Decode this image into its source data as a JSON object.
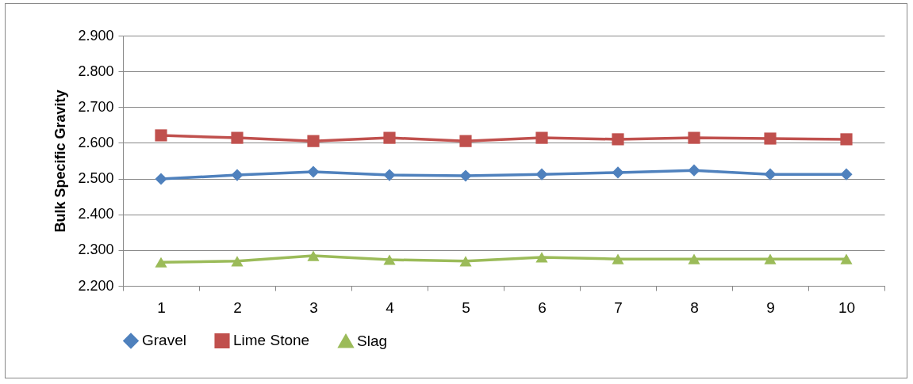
{
  "chart_data": {
    "type": "line",
    "ylabel": "Bulk Specific Gravity",
    "categories": [
      "1",
      "2",
      "3",
      "4",
      "5",
      "6",
      "7",
      "8",
      "9",
      "10"
    ],
    "series": [
      {
        "name": "Gravel",
        "color": "#4f81bd",
        "marker": "diamond",
        "values": [
          2.499,
          2.51,
          2.519,
          2.51,
          2.508,
          2.512,
          2.517,
          2.523,
          2.512,
          2.512
        ]
      },
      {
        "name": "Lime Stone",
        "color": "#c0504d",
        "marker": "square",
        "values": [
          2.621,
          2.614,
          2.605,
          2.614,
          2.605,
          2.614,
          2.61,
          2.614,
          2.612,
          2.61
        ]
      },
      {
        "name": "Slag",
        "color": "#9bbb59",
        "marker": "triangle",
        "values": [
          2.266,
          2.269,
          2.284,
          2.273,
          2.269,
          2.28,
          2.275,
          2.275,
          2.275,
          2.275
        ]
      }
    ],
    "ylim": [
      2.2,
      2.9
    ],
    "yticks": [
      {
        "value": 2.2,
        "label": "2.200"
      },
      {
        "value": 2.3,
        "label": "2.300"
      },
      {
        "value": 2.4,
        "label": "2.400"
      },
      {
        "value": 2.5,
        "label": "2.500"
      },
      {
        "value": 2.6,
        "label": "2.600"
      },
      {
        "value": 2.7,
        "label": "2.700"
      },
      {
        "value": 2.8,
        "label": "2.800"
      },
      {
        "value": 2.9,
        "label": "2.900"
      }
    ],
    "grid": "y",
    "legend": "bottom",
    "line_style": "solid"
  }
}
